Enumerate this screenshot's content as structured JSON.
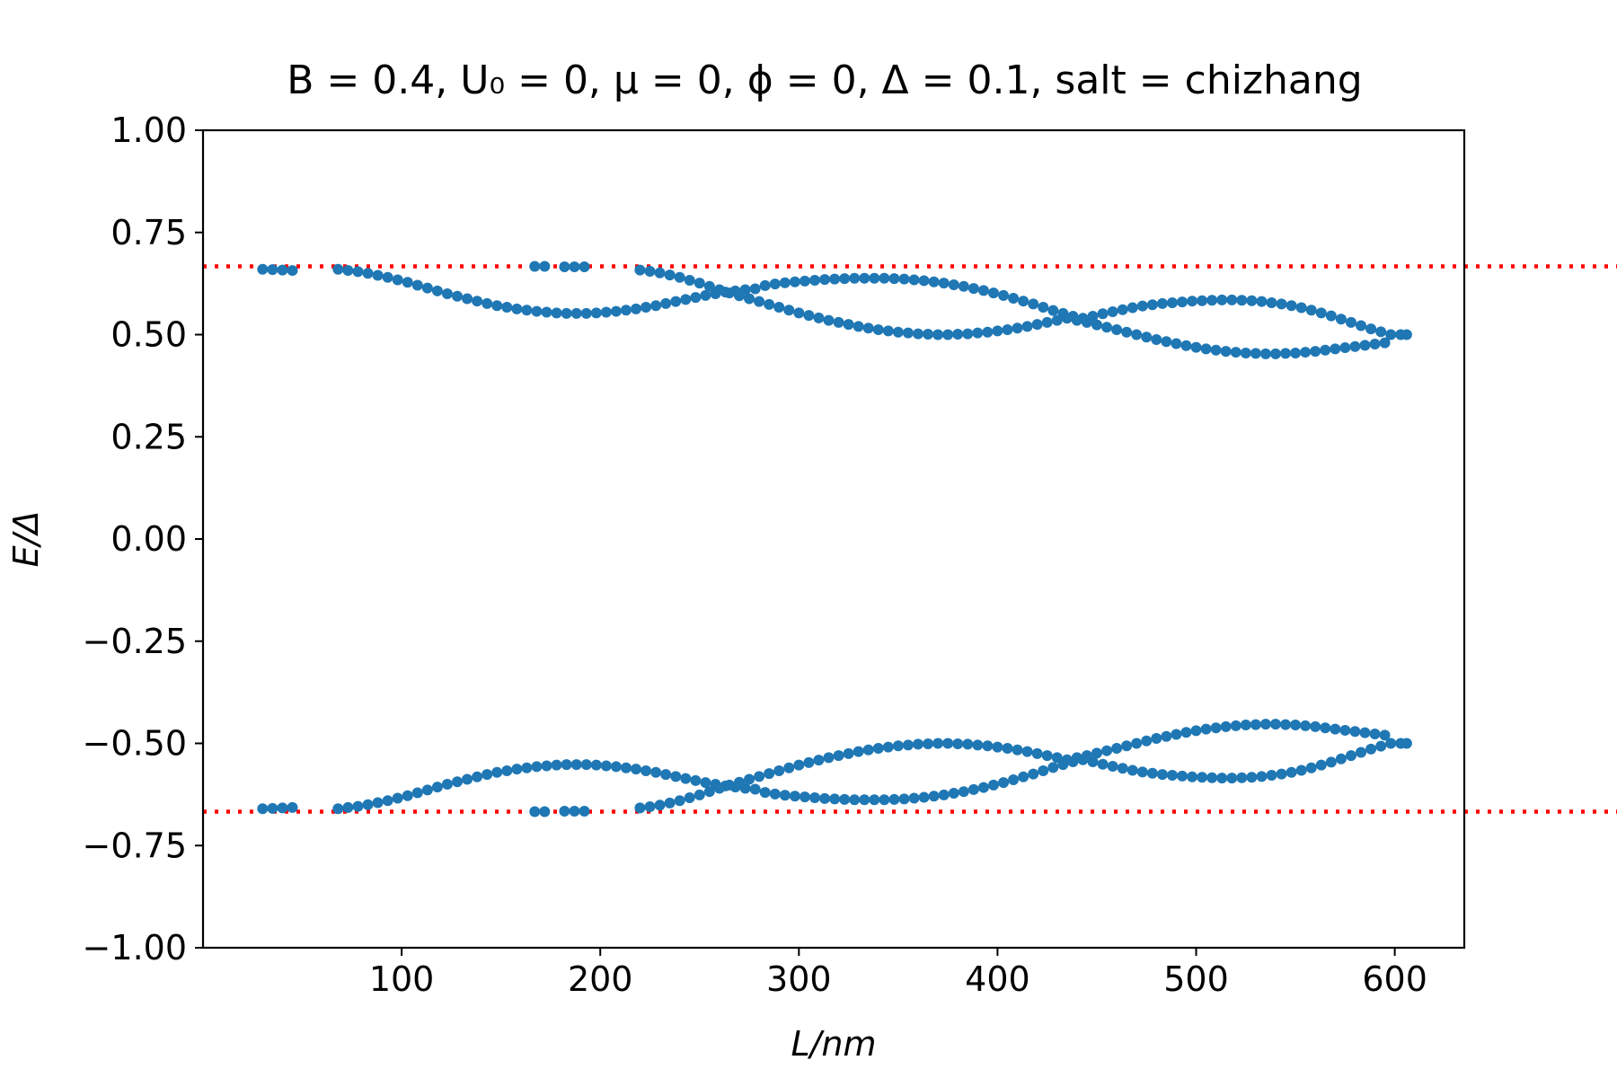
{
  "chart_data": {
    "type": "scatter",
    "title": "B = 0.4, U₀ = 0, μ = 0, ϕ = 0, Δ = 0.1, salt = chizhang",
    "xlabel": "L/nm",
    "ylabel": "E/Δ",
    "xlim": [
      0,
      635
    ],
    "ylim": [
      -1.0,
      1.0
    ],
    "xticks": [
      "100",
      "200",
      "300",
      "400",
      "500",
      "600"
    ],
    "xtick_values": [
      100,
      200,
      300,
      400,
      500,
      600
    ],
    "yticks": [
      "1.00",
      "0.75",
      "0.50",
      "0.25",
      "0.00",
      "−0.25",
      "−0.50",
      "−0.75",
      "−1.00"
    ],
    "ytick_values": [
      1.0,
      0.75,
      0.5,
      0.25,
      0.0,
      -0.25,
      -0.5,
      -0.75,
      -1.0
    ],
    "grid": false,
    "series_color": "#1f77b4",
    "reference_color": "#ff0000",
    "reference_lines": [
      0.667,
      -0.667
    ],
    "series": [
      {
        "points": [
          [
            30,
            0.66
          ],
          [
            35,
            0.659
          ],
          [
            40,
            0.658
          ],
          [
            45,
            0.657
          ],
          [
            167,
            0.667
          ],
          [
            172,
            0.667
          ],
          [
            182,
            0.666
          ],
          [
            187,
            0.666
          ],
          [
            192,
            0.666
          ],
          [
            68,
            0.66
          ],
          [
            73,
            0.657
          ],
          [
            78,
            0.654
          ],
          [
            83,
            0.65
          ],
          [
            88,
            0.645
          ],
          [
            93,
            0.64
          ],
          [
            98,
            0.634
          ],
          [
            103,
            0.628
          ],
          [
            108,
            0.621
          ],
          [
            113,
            0.614
          ],
          [
            118,
            0.607
          ],
          [
            123,
            0.6
          ],
          [
            128,
            0.594
          ],
          [
            133,
            0.588
          ],
          [
            138,
            0.582
          ],
          [
            143,
            0.576
          ],
          [
            148,
            0.571
          ],
          [
            153,
            0.567
          ],
          [
            158,
            0.563
          ],
          [
            163,
            0.56
          ],
          [
            168,
            0.557
          ],
          [
            173,
            0.555
          ],
          [
            178,
            0.553
          ],
          [
            183,
            0.552
          ],
          [
            188,
            0.552
          ],
          [
            193,
            0.552
          ],
          [
            198,
            0.553
          ],
          [
            203,
            0.555
          ],
          [
            208,
            0.557
          ],
          [
            213,
            0.56
          ],
          [
            218,
            0.563
          ],
          [
            223,
            0.567
          ],
          [
            228,
            0.571
          ],
          [
            233,
            0.576
          ],
          [
            238,
            0.581
          ],
          [
            243,
            0.586
          ],
          [
            248,
            0.591
          ],
          [
            253,
            0.596
          ],
          [
            258,
            0.6
          ],
          [
            263,
            0.604
          ],
          [
            268,
            0.607
          ],
          [
            273,
            0.61
          ],
          [
            278,
            0.612
          ],
          [
            283,
            0.62
          ],
          [
            288,
            0.624
          ],
          [
            293,
            0.627
          ],
          [
            298,
            0.629
          ],
          [
            303,
            0.631
          ],
          [
            308,
            0.633
          ],
          [
            313,
            0.635
          ],
          [
            318,
            0.636
          ],
          [
            323,
            0.637
          ],
          [
            328,
            0.638
          ],
          [
            333,
            0.638
          ],
          [
            338,
            0.638
          ],
          [
            343,
            0.638
          ],
          [
            348,
            0.637
          ],
          [
            353,
            0.636
          ],
          [
            358,
            0.634
          ],
          [
            363,
            0.632
          ],
          [
            368,
            0.629
          ],
          [
            373,
            0.626
          ],
          [
            378,
            0.622
          ],
          [
            383,
            0.618
          ],
          [
            388,
            0.613
          ],
          [
            393,
            0.608
          ],
          [
            398,
            0.602
          ],
          [
            403,
            0.596
          ],
          [
            408,
            0.589
          ],
          [
            413,
            0.582
          ],
          [
            418,
            0.575
          ],
          [
            423,
            0.567
          ],
          [
            428,
            0.559
          ],
          [
            433,
            0.552
          ],
          [
            438,
            0.545
          ],
          [
            443,
            0.54
          ],
          [
            448,
            0.545
          ],
          [
            453,
            0.551
          ],
          [
            458,
            0.556
          ],
          [
            463,
            0.561
          ],
          [
            468,
            0.566
          ],
          [
            473,
            0.57
          ],
          [
            478,
            0.573
          ],
          [
            483,
            0.576
          ],
          [
            488,
            0.578
          ],
          [
            493,
            0.58
          ],
          [
            498,
            0.582
          ],
          [
            503,
            0.583
          ],
          [
            508,
            0.584
          ],
          [
            513,
            0.585
          ],
          [
            518,
            0.585
          ],
          [
            523,
            0.584
          ],
          [
            528,
            0.583
          ],
          [
            533,
            0.581
          ],
          [
            538,
            0.578
          ],
          [
            543,
            0.575
          ],
          [
            548,
            0.571
          ],
          [
            553,
            0.566
          ],
          [
            558,
            0.56
          ],
          [
            563,
            0.553
          ],
          [
            568,
            0.546
          ],
          [
            573,
            0.538
          ],
          [
            578,
            0.53
          ],
          [
            583,
            0.522
          ],
          [
            588,
            0.514
          ],
          [
            593,
            0.507
          ],
          [
            598,
            0.5
          ],
          [
            603,
            0.5
          ],
          [
            220,
            0.658
          ],
          [
            225,
            0.655
          ],
          [
            230,
            0.651
          ],
          [
            235,
            0.646
          ],
          [
            240,
            0.64
          ],
          [
            245,
            0.633
          ],
          [
            250,
            0.626
          ],
          [
            255,
            0.618
          ],
          [
            260,
            0.61
          ],
          [
            265,
            0.602
          ],
          [
            270,
            0.595
          ],
          [
            275,
            0.588
          ],
          [
            280,
            0.581
          ],
          [
            285,
            0.574
          ],
          [
            290,
            0.567
          ],
          [
            295,
            0.56
          ],
          [
            300,
            0.553
          ],
          [
            305,
            0.547
          ],
          [
            310,
            0.541
          ],
          [
            315,
            0.535
          ],
          [
            320,
            0.53
          ],
          [
            325,
            0.525
          ],
          [
            330,
            0.52
          ],
          [
            335,
            0.516
          ],
          [
            340,
            0.512
          ],
          [
            345,
            0.509
          ],
          [
            350,
            0.506
          ],
          [
            355,
            0.504
          ],
          [
            360,
            0.502
          ],
          [
            365,
            0.501
          ],
          [
            370,
            0.5
          ],
          [
            375,
            0.5
          ],
          [
            380,
            0.501
          ],
          [
            385,
            0.502
          ],
          [
            390,
            0.504
          ],
          [
            395,
            0.506
          ],
          [
            400,
            0.509
          ],
          [
            405,
            0.512
          ],
          [
            410,
            0.516
          ],
          [
            415,
            0.52
          ],
          [
            420,
            0.525
          ],
          [
            425,
            0.53
          ],
          [
            430,
            0.535
          ],
          [
            435,
            0.54
          ],
          [
            440,
            0.535
          ],
          [
            445,
            0.53
          ],
          [
            450,
            0.524
          ],
          [
            455,
            0.518
          ],
          [
            460,
            0.512
          ],
          [
            465,
            0.506
          ],
          [
            470,
            0.5
          ],
          [
            475,
            0.494
          ],
          [
            480,
            0.488
          ],
          [
            485,
            0.483
          ],
          [
            490,
            0.478
          ],
          [
            495,
            0.473
          ],
          [
            500,
            0.469
          ],
          [
            505,
            0.465
          ],
          [
            510,
            0.462
          ],
          [
            515,
            0.459
          ],
          [
            520,
            0.457
          ],
          [
            525,
            0.455
          ],
          [
            530,
            0.454
          ],
          [
            535,
            0.453
          ],
          [
            540,
            0.453
          ],
          [
            545,
            0.454
          ],
          [
            550,
            0.455
          ],
          [
            555,
            0.457
          ],
          [
            560,
            0.459
          ],
          [
            565,
            0.462
          ],
          [
            570,
            0.465
          ],
          [
            575,
            0.468
          ],
          [
            580,
            0.471
          ],
          [
            585,
            0.474
          ],
          [
            590,
            0.477
          ],
          [
            595,
            0.48
          ],
          [
            606,
            0.5
          ]
        ]
      }
    ]
  }
}
